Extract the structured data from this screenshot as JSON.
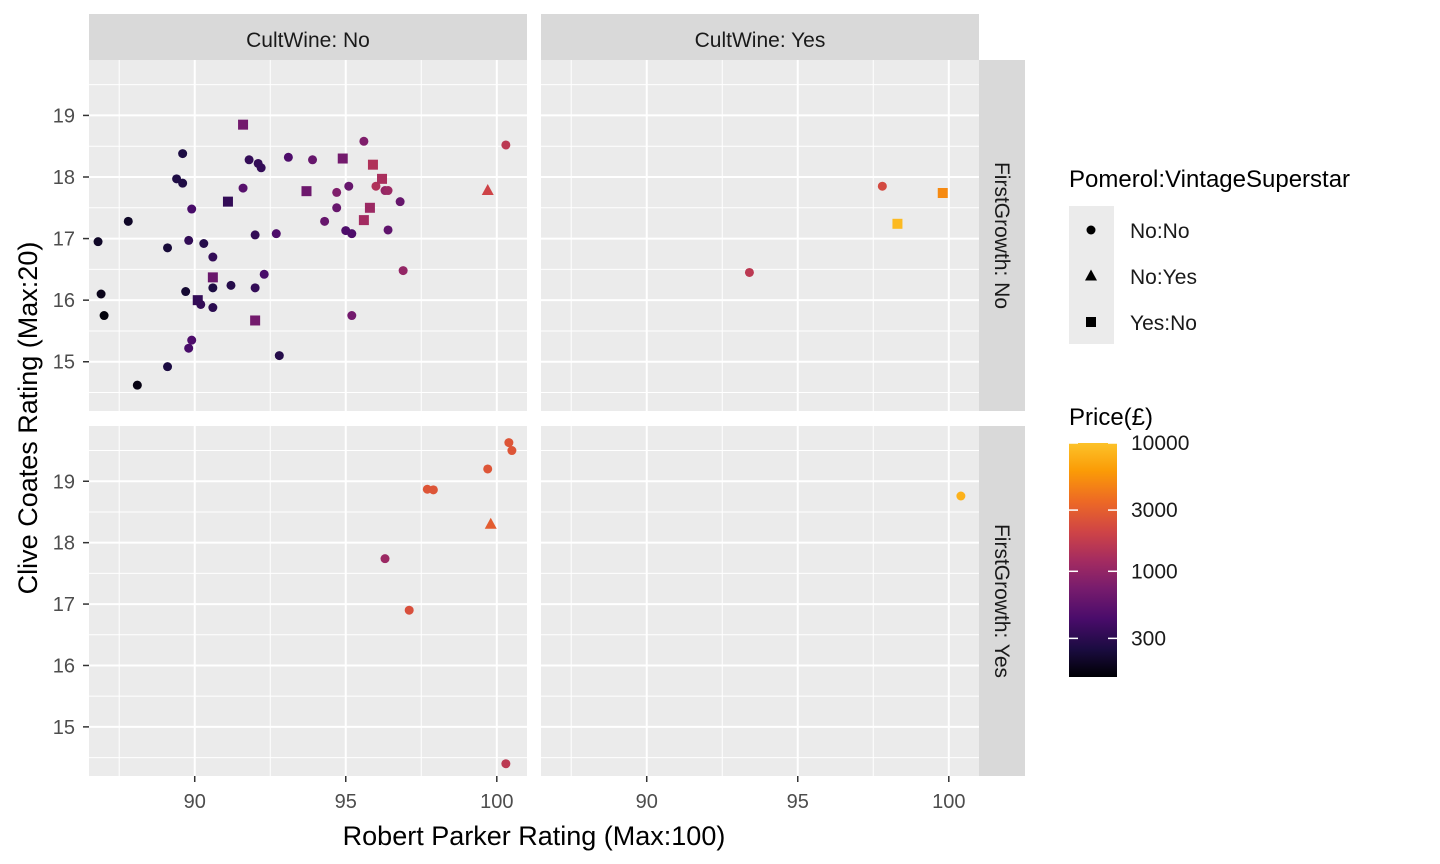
{
  "chart_data": {
    "type": "scatter",
    "xlabel": "Robert Parker Rating (Max:100)",
    "ylabel": "Clive Coates Rating (Max:20)",
    "xlim": [
      86.5,
      101
    ],
    "ylim": [
      14.2,
      19.9
    ],
    "x_ticks": [
      90,
      95,
      100
    ],
    "y_ticks": [
      15,
      16,
      17,
      18,
      19
    ],
    "grid": true,
    "col_facets": [
      "CultWine: No",
      "CultWine: Yes"
    ],
    "row_facets": [
      "FirstGrowth: No",
      "FirstGrowth: Yes"
    ],
    "shape_legend": {
      "title": "Pomerol:VintageSuperstar",
      "items": [
        {
          "label": "No:No",
          "shape": "circle"
        },
        {
          "label": "No:Yes",
          "shape": "triangle"
        },
        {
          "label": "Yes:No",
          "shape": "square"
        }
      ]
    },
    "color_legend": {
      "title": "Price(£)",
      "scale": "log",
      "range": [
        150,
        10000
      ],
      "ticks": [
        10000,
        3000,
        1000,
        300
      ]
    },
    "panels": [
      {
        "col": 0,
        "row": 0,
        "points": [
          {
            "x": 86.8,
            "y": 16.95,
            "shape": "circle",
            "price": 200
          },
          {
            "x": 86.9,
            "y": 16.1,
            "shape": "circle",
            "price": 180
          },
          {
            "x": 87.0,
            "y": 15.75,
            "shape": "circle",
            "price": 160
          },
          {
            "x": 87.8,
            "y": 17.28,
            "shape": "circle",
            "price": 200
          },
          {
            "x": 88.1,
            "y": 14.62,
            "shape": "circle",
            "price": 170
          },
          {
            "x": 89.1,
            "y": 16.85,
            "shape": "circle",
            "price": 230
          },
          {
            "x": 89.1,
            "y": 14.92,
            "shape": "circle",
            "price": 250
          },
          {
            "x": 89.4,
            "y": 17.97,
            "shape": "circle",
            "price": 260
          },
          {
            "x": 89.6,
            "y": 18.38,
            "shape": "circle",
            "price": 250
          },
          {
            "x": 89.6,
            "y": 17.9,
            "shape": "circle",
            "price": 260
          },
          {
            "x": 89.7,
            "y": 16.14,
            "shape": "circle",
            "price": 220
          },
          {
            "x": 89.8,
            "y": 16.97,
            "shape": "circle",
            "price": 320
          },
          {
            "x": 89.8,
            "y": 15.22,
            "shape": "circle",
            "price": 420
          },
          {
            "x": 89.9,
            "y": 15.35,
            "shape": "circle",
            "price": 450
          },
          {
            "x": 89.9,
            "y": 17.48,
            "shape": "circle",
            "price": 420
          },
          {
            "x": 90.1,
            "y": 16.0,
            "shape": "square",
            "price": 330
          },
          {
            "x": 90.2,
            "y": 15.93,
            "shape": "circle",
            "price": 330
          },
          {
            "x": 90.3,
            "y": 16.92,
            "shape": "circle",
            "price": 280
          },
          {
            "x": 90.6,
            "y": 16.37,
            "shape": "square",
            "price": 620
          },
          {
            "x": 90.6,
            "y": 16.2,
            "shape": "circle",
            "price": 250
          },
          {
            "x": 90.6,
            "y": 15.88,
            "shape": "circle",
            "price": 300
          },
          {
            "x": 90.6,
            "y": 16.7,
            "shape": "circle",
            "price": 330
          },
          {
            "x": 91.1,
            "y": 17.6,
            "shape": "square",
            "price": 330
          },
          {
            "x": 91.2,
            "y": 16.24,
            "shape": "circle",
            "price": 280
          },
          {
            "x": 91.6,
            "y": 18.85,
            "shape": "square",
            "price": 700
          },
          {
            "x": 91.6,
            "y": 17.82,
            "shape": "circle",
            "price": 500
          },
          {
            "x": 91.8,
            "y": 18.28,
            "shape": "circle",
            "price": 330
          },
          {
            "x": 92.0,
            "y": 15.67,
            "shape": "square",
            "price": 700
          },
          {
            "x": 92.0,
            "y": 16.2,
            "shape": "circle",
            "price": 330
          },
          {
            "x": 92.0,
            "y": 17.06,
            "shape": "circle",
            "price": 330
          },
          {
            "x": 92.1,
            "y": 18.22,
            "shape": "circle",
            "price": 330
          },
          {
            "x": 92.2,
            "y": 18.15,
            "shape": "circle",
            "price": 330
          },
          {
            "x": 92.3,
            "y": 16.42,
            "shape": "circle",
            "price": 420
          },
          {
            "x": 92.7,
            "y": 17.08,
            "shape": "circle",
            "price": 450
          },
          {
            "x": 92.8,
            "y": 15.1,
            "shape": "circle",
            "price": 280
          },
          {
            "x": 93.1,
            "y": 18.32,
            "shape": "circle",
            "price": 450
          },
          {
            "x": 93.7,
            "y": 17.77,
            "shape": "square",
            "price": 650
          },
          {
            "x": 93.9,
            "y": 18.28,
            "shape": "circle",
            "price": 600
          },
          {
            "x": 94.3,
            "y": 17.28,
            "shape": "circle",
            "price": 600
          },
          {
            "x": 94.7,
            "y": 17.5,
            "shape": "circle",
            "price": 600
          },
          {
            "x": 94.7,
            "y": 17.75,
            "shape": "circle",
            "price": 800
          },
          {
            "x": 94.9,
            "y": 18.3,
            "shape": "square",
            "price": 700
          },
          {
            "x": 95.0,
            "y": 17.13,
            "shape": "circle",
            "price": 450
          },
          {
            "x": 95.1,
            "y": 17.85,
            "shape": "circle",
            "price": 600
          },
          {
            "x": 95.2,
            "y": 17.08,
            "shape": "circle",
            "price": 450
          },
          {
            "x": 95.2,
            "y": 15.75,
            "shape": "circle",
            "price": 700
          },
          {
            "x": 95.6,
            "y": 18.58,
            "shape": "circle",
            "price": 800
          },
          {
            "x": 95.6,
            "y": 17.3,
            "shape": "square",
            "price": 1200
          },
          {
            "x": 95.8,
            "y": 17.5,
            "shape": "square",
            "price": 1100
          },
          {
            "x": 95.9,
            "y": 18.2,
            "shape": "square",
            "price": 1400
          },
          {
            "x": 96.0,
            "y": 17.85,
            "shape": "circle",
            "price": 1400
          },
          {
            "x": 96.2,
            "y": 17.97,
            "shape": "square",
            "price": 1300
          },
          {
            "x": 96.3,
            "y": 17.78,
            "shape": "circle",
            "price": 1000
          },
          {
            "x": 96.4,
            "y": 17.78,
            "shape": "circle",
            "price": 1100
          },
          {
            "x": 96.4,
            "y": 17.14,
            "shape": "circle",
            "price": 550
          },
          {
            "x": 96.8,
            "y": 17.6,
            "shape": "circle",
            "price": 600
          },
          {
            "x": 96.9,
            "y": 16.48,
            "shape": "circle",
            "price": 1000
          },
          {
            "x": 99.7,
            "y": 17.78,
            "shape": "triangle",
            "price": 2000
          },
          {
            "x": 100.3,
            "y": 18.52,
            "shape": "circle",
            "price": 1600
          }
        ]
      },
      {
        "col": 1,
        "row": 0,
        "points": [
          {
            "x": 93.4,
            "y": 16.45,
            "shape": "circle",
            "price": 1600
          },
          {
            "x": 97.8,
            "y": 17.85,
            "shape": "circle",
            "price": 2200
          },
          {
            "x": 98.3,
            "y": 17.24,
            "shape": "square",
            "price": 9000
          },
          {
            "x": 99.8,
            "y": 17.74,
            "shape": "square",
            "price": 5000
          }
        ]
      },
      {
        "col": 0,
        "row": 1,
        "points": [
          {
            "x": 96.3,
            "y": 17.74,
            "shape": "circle",
            "price": 1100
          },
          {
            "x": 97.1,
            "y": 16.9,
            "shape": "circle",
            "price": 2400
          },
          {
            "x": 97.7,
            "y": 18.87,
            "shape": "circle",
            "price": 2600
          },
          {
            "x": 97.9,
            "y": 18.86,
            "shape": "circle",
            "price": 2600
          },
          {
            "x": 99.7,
            "y": 19.2,
            "shape": "circle",
            "price": 2600
          },
          {
            "x": 99.8,
            "y": 18.3,
            "shape": "triangle",
            "price": 2900
          },
          {
            "x": 100.4,
            "y": 19.63,
            "shape": "circle",
            "price": 2600
          },
          {
            "x": 100.5,
            "y": 19.5,
            "shape": "circle",
            "price": 2600
          },
          {
            "x": 100.3,
            "y": 14.4,
            "shape": "circle",
            "price": 1600
          }
        ]
      },
      {
        "col": 1,
        "row": 1,
        "points": [
          {
            "x": 100.4,
            "y": 18.76,
            "shape": "circle",
            "price": 8000
          }
        ]
      }
    ]
  }
}
